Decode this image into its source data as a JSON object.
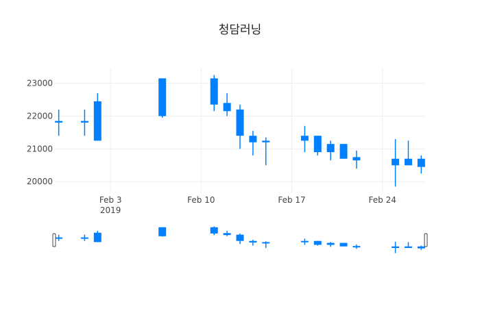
{
  "colors": {
    "increasing": "#ff7f7f",
    "decreasing": "#0080ff",
    "grid": "#eeeeee",
    "axis_text": "#444444",
    "title": "#222222",
    "handle_stroke": "#444444"
  },
  "chart_data": {
    "type": "candlestick",
    "title": "청담러닝",
    "grid": true,
    "y_ticks": [
      20000,
      21000,
      22000,
      23000
    ],
    "x_ticks": [
      {
        "date": "2019-02-03",
        "label": "Feb 3",
        "sublabel": "2019"
      },
      {
        "date": "2019-02-10",
        "label": "Feb 10",
        "sublabel": ""
      },
      {
        "date": "2019-02-17",
        "label": "Feb 17",
        "sublabel": ""
      },
      {
        "date": "2019-02-24",
        "label": "Feb 24",
        "sublabel": ""
      }
    ],
    "xlim": [
      "2019-01-30",
      "2019-02-27"
    ],
    "ylim": [
      19650,
      23450
    ],
    "range_slider": true,
    "series": [
      {
        "date": "2019-01-30",
        "open": 21850,
        "high": 22200,
        "low": 21400,
        "close": 21800
      },
      {
        "date": "2019-02-01",
        "open": 21850,
        "high": 22200,
        "low": 21400,
        "close": 21800
      },
      {
        "date": "2019-02-02",
        "open": 22450,
        "high": 22700,
        "low": 21250,
        "close": 21250
      },
      {
        "date": "2019-02-07",
        "open": 23150,
        "high": 23150,
        "low": 21950,
        "close": 22000
      },
      {
        "date": "2019-02-11",
        "open": 23150,
        "high": 23250,
        "low": 22150,
        "close": 22350
      },
      {
        "date": "2019-02-12",
        "open": 22400,
        "high": 22700,
        "low": 22000,
        "close": 22150
      },
      {
        "date": "2019-02-13",
        "open": 22200,
        "high": 22350,
        "low": 21000,
        "close": 21400
      },
      {
        "date": "2019-02-14",
        "open": 21400,
        "high": 21550,
        "low": 20800,
        "close": 21200
      },
      {
        "date": "2019-02-15",
        "open": 21250,
        "high": 21350,
        "low": 20500,
        "close": 21200
      },
      {
        "date": "2019-02-18",
        "open": 21400,
        "high": 21700,
        "low": 20900,
        "close": 21250
      },
      {
        "date": "2019-02-19",
        "open": 21400,
        "high": 21400,
        "low": 20800,
        "close": 20900
      },
      {
        "date": "2019-02-20",
        "open": 21150,
        "high": 21250,
        "low": 20650,
        "close": 20900
      },
      {
        "date": "2019-02-21",
        "open": 21150,
        "high": 21150,
        "low": 20700,
        "close": 20700
      },
      {
        "date": "2019-02-22",
        "open": 20750,
        "high": 20950,
        "low": 20400,
        "close": 20650
      },
      {
        "date": "2019-02-25",
        "open": 20700,
        "high": 21300,
        "low": 19850,
        "close": 20500
      },
      {
        "date": "2019-02-26",
        "open": 20700,
        "high": 21250,
        "low": 20500,
        "close": 20500
      },
      {
        "date": "2019-02-27",
        "open": 20700,
        "high": 20800,
        "low": 20250,
        "close": 20450
      }
    ]
  }
}
